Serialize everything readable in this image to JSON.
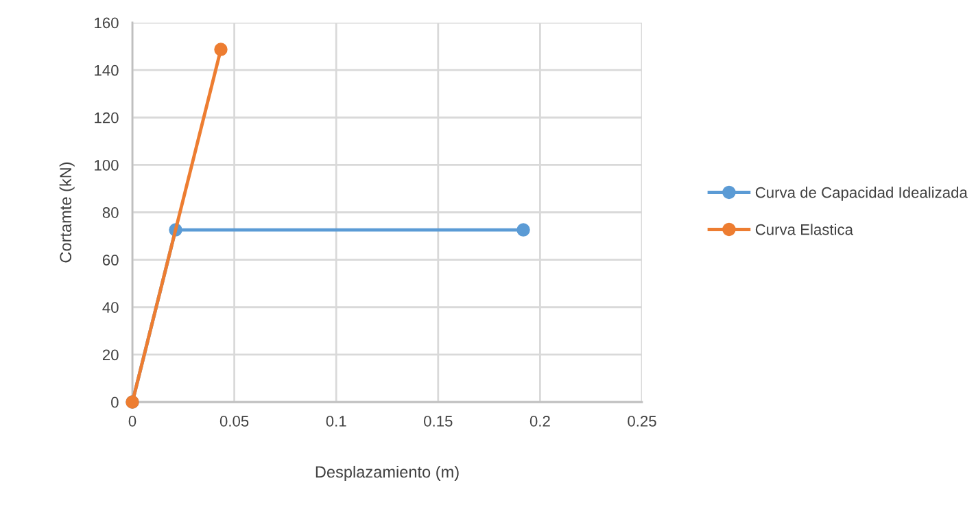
{
  "chart_data": {
    "type": "line",
    "xlabel": "Desplazamiento (m)",
    "ylabel": "Cortamte (kN)",
    "series": [
      {
        "name": "Curva de Capacidad Idealizada",
        "color": "#5b9bd5",
        "x": [
          0,
          0.0212,
          0.1918
        ],
        "values": [
          0,
          72.6,
          72.6
        ]
      },
      {
        "name": "Curva Elastica",
        "color": "#ed7d31",
        "x": [
          0,
          0.0434
        ],
        "values": [
          0,
          148.7
        ]
      }
    ],
    "xlim": [
      0,
      0.25
    ],
    "xticks": [
      0,
      0.05,
      0.1,
      0.15,
      0.2,
      0.25
    ],
    "ylim": [
      0,
      160
    ],
    "yticks": [
      0,
      20,
      40,
      60,
      80,
      100,
      120,
      140,
      160
    ],
    "grid": true,
    "legend": "right",
    "marker": "circle",
    "line_style": "solid"
  }
}
